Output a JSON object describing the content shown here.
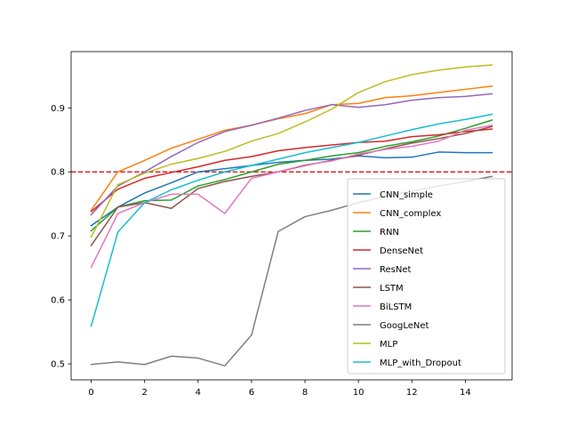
{
  "chart_data": {
    "type": "line",
    "x": [
      0,
      1,
      2,
      3,
      4,
      5,
      6,
      7,
      8,
      9,
      10,
      11,
      12,
      13,
      14,
      15
    ],
    "xlim": [
      -0.75,
      15.75
    ],
    "ylim": [
      0.475,
      0.988
    ],
    "xticks": [
      0,
      2,
      4,
      6,
      8,
      10,
      12,
      14
    ],
    "yticks": [
      0.5,
      0.6,
      0.7,
      0.8,
      0.9
    ],
    "xtick_labels": [
      "0",
      "2",
      "4",
      "6",
      "8",
      "10",
      "12",
      "14"
    ],
    "ytick_labels": [
      "0.5",
      "0.6",
      "0.7",
      "0.8",
      "0.9"
    ],
    "grid": false,
    "legend_position": "lower-right",
    "reference_line": {
      "y": 0.8,
      "color": "#d62728",
      "style": "dashed"
    },
    "series": [
      {
        "name": "CNN_simple",
        "color": "#1f77b4",
        "values": [
          0.716,
          0.745,
          0.767,
          0.783,
          0.8,
          0.805,
          0.81,
          0.815,
          0.818,
          0.82,
          0.825,
          0.822,
          0.823,
          0.831,
          0.83,
          0.83
        ]
      },
      {
        "name": "CNN_complex",
        "color": "#ff7f0e",
        "values": [
          0.74,
          0.8,
          0.818,
          0.837,
          0.851,
          0.865,
          0.873,
          0.883,
          0.891,
          0.905,
          0.907,
          0.916,
          0.919,
          0.924,
          0.929,
          0.934
        ]
      },
      {
        "name": "RNN",
        "color": "#2ca02c",
        "values": [
          0.708,
          0.745,
          0.755,
          0.756,
          0.778,
          0.788,
          0.8,
          0.812,
          0.818,
          0.825,
          0.83,
          0.84,
          0.847,
          0.856,
          0.868,
          0.881
        ]
      },
      {
        "name": "DenseNet",
        "color": "#d62728",
        "values": [
          0.738,
          0.773,
          0.79,
          0.799,
          0.808,
          0.818,
          0.824,
          0.833,
          0.838,
          0.842,
          0.846,
          0.848,
          0.855,
          0.858,
          0.863,
          0.867
        ]
      },
      {
        "name": "ResNet",
        "color": "#9467bd",
        "values": [
          0.733,
          0.778,
          0.8,
          0.824,
          0.846,
          0.863,
          0.873,
          0.884,
          0.896,
          0.905,
          0.901,
          0.905,
          0.912,
          0.916,
          0.918,
          0.922
        ]
      },
      {
        "name": "LSTM",
        "color": "#8c564b",
        "values": [
          0.685,
          0.745,
          0.752,
          0.743,
          0.774,
          0.785,
          0.793,
          0.8,
          0.81,
          0.818,
          0.826,
          0.836,
          0.845,
          0.852,
          0.86,
          0.871
        ]
      },
      {
        "name": "BiLSTM",
        "color": "#e377c2",
        "values": [
          0.651,
          0.735,
          0.752,
          0.765,
          0.765,
          0.735,
          0.79,
          0.8,
          0.811,
          0.817,
          0.828,
          0.835,
          0.84,
          0.848,
          0.865,
          0.873
        ]
      },
      {
        "name": "GoogLeNet",
        "color": "#7f7f7f",
        "values": [
          0.499,
          0.503,
          0.499,
          0.512,
          0.509,
          0.497,
          0.545,
          0.707,
          0.73,
          0.74,
          0.752,
          0.762,
          0.77,
          0.778,
          0.785,
          0.793
        ]
      },
      {
        "name": "MLP",
        "color": "#bcbd22",
        "values": [
          0.698,
          0.78,
          0.798,
          0.812,
          0.821,
          0.832,
          0.848,
          0.86,
          0.878,
          0.898,
          0.924,
          0.941,
          0.952,
          0.959,
          0.964,
          0.967
        ]
      },
      {
        "name": "MLP_with_Dropout",
        "color": "#17becf",
        "values": [
          0.559,
          0.706,
          0.752,
          0.772,
          0.787,
          0.8,
          0.81,
          0.82,
          0.83,
          0.838,
          0.846,
          0.856,
          0.866,
          0.875,
          0.882,
          0.89
        ]
      }
    ]
  }
}
